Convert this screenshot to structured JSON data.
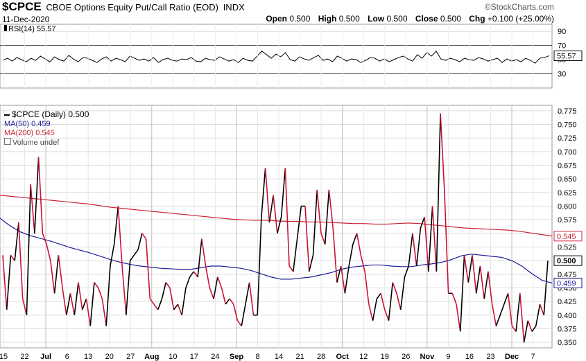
{
  "header": {
    "symbol": "$CPCE",
    "description": "CBOE Options Equity Put/Call Ratio (EOD)",
    "exchange": "INDX",
    "date": "11-Dec-2020",
    "watermark": "©StockCharts.com",
    "open_label": "Open",
    "open": "0.500",
    "high_label": "High",
    "high": "0.500",
    "low_label": "Low",
    "low": "0.500",
    "close_label": "Close",
    "close": "0.500",
    "chg_label": "Chg",
    "chg": "+0.100 (+25.00%)"
  },
  "rsi_panel": {
    "legend": "RSI(14) 55.57",
    "current_label": "55.57",
    "ticks": [
      "90",
      "70",
      "50",
      "30"
    ]
  },
  "price_panel": {
    "legend_price": "$CPCE (Daily) 0.500",
    "legend_ma50": "MA(50) 0.459",
    "legend_ma200": "MA(200) 0.545",
    "legend_volume": "Volume undef",
    "last_close_label": "0.500",
    "ma50_label": "0.459",
    "ma200_label": "0.545",
    "y_ticks": [
      "0.775",
      "0.750",
      "0.725",
      "0.700",
      "0.675",
      "0.650",
      "0.625",
      "0.600",
      "0.575",
      "0.550",
      "0.525",
      "0.500",
      "0.475",
      "0.450",
      "0.425",
      "0.400",
      "0.375",
      "0.350"
    ]
  },
  "x_axis": {
    "labels": [
      "15",
      "22",
      "Jul",
      "6",
      "13",
      "20",
      "27",
      "Aug",
      "10",
      "17",
      "24",
      "Sep",
      "8",
      "14",
      "21",
      "28",
      "Oct",
      "12",
      "19",
      "26",
      "Nov",
      "9",
      "16",
      "23",
      "Dec",
      "7"
    ]
  },
  "colors": {
    "up": "#000000",
    "down": "#cc1133",
    "ma50": "#1a1a99",
    "ma200": "#cc2233",
    "grid": "#dddddd",
    "rsi_line": "#000000"
  },
  "chart_data": [
    {
      "type": "line",
      "title": "RSI(14)",
      "ylim": [
        10,
        100
      ],
      "series": [
        {
          "name": "RSI(14)",
          "values": [
            49,
            52,
            48,
            53,
            50,
            47,
            52,
            49,
            55,
            51,
            47,
            54,
            50,
            48,
            56,
            51,
            47,
            53,
            52,
            49,
            46,
            51,
            54,
            48,
            52,
            50,
            47,
            55,
            52,
            49,
            51,
            48,
            53,
            46,
            50,
            52,
            49,
            48,
            51,
            50,
            53,
            48,
            47,
            52,
            50,
            49,
            54,
            51,
            48,
            50,
            46,
            52,
            49,
            48,
            55,
            62,
            57,
            52,
            58,
            54,
            60,
            50,
            48,
            54,
            51,
            49,
            53,
            56,
            49,
            51,
            47,
            55,
            52,
            48,
            51,
            50,
            46,
            49,
            53,
            52,
            48,
            51,
            47,
            50,
            53,
            55,
            51,
            48,
            57,
            52,
            60,
            55,
            62,
            51,
            49,
            52,
            50,
            47,
            52,
            50,
            49,
            53,
            51,
            48,
            50,
            52,
            46,
            51,
            48,
            50,
            47,
            52,
            49,
            45,
            52,
            53,
            55.57
          ]
        }
      ]
    },
    {
      "type": "line",
      "title": "$CPCE (Daily)",
      "ylim": [
        0.34,
        0.785
      ],
      "series": [
        {
          "name": "$CPCE (Daily)",
          "values": [
            0.51,
            0.41,
            0.51,
            0.5,
            0.57,
            0.43,
            0.4,
            0.64,
            0.55,
            0.69,
            0.55,
            0.53,
            0.5,
            0.44,
            0.51,
            0.45,
            0.4,
            0.44,
            0.4,
            0.46,
            0.41,
            0.43,
            0.38,
            0.46,
            0.45,
            0.43,
            0.38,
            0.49,
            0.53,
            0.6,
            0.49,
            0.4,
            0.5,
            0.51,
            0.52,
            0.55,
            0.54,
            0.43,
            0.42,
            0.41,
            0.43,
            0.46,
            0.45,
            0.41,
            0.42,
            0.4,
            0.45,
            0.47,
            0.48,
            0.47,
            0.54,
            0.49,
            0.45,
            0.43,
            0.47,
            0.45,
            0.42,
            0.43,
            0.42,
            0.39,
            0.38,
            0.42,
            0.46,
            0.4,
            0.4,
            0.58,
            0.67,
            0.57,
            0.62,
            0.55,
            0.58,
            0.67,
            0.49,
            0.48,
            0.54,
            0.6,
            0.6,
            0.48,
            0.51,
            0.63,
            0.55,
            0.53,
            0.63,
            0.56,
            0.46,
            0.49,
            0.44,
            0.49,
            0.53,
            0.55,
            0.51,
            0.48,
            0.42,
            0.39,
            0.43,
            0.44,
            0.41,
            0.39,
            0.46,
            0.44,
            0.41,
            0.47,
            0.49,
            0.55,
            0.49,
            0.56,
            0.58,
            0.48,
            0.6,
            0.48,
            0.77,
            0.63,
            0.44,
            0.44,
            0.42,
            0.37,
            0.51,
            0.46,
            0.51,
            0.44,
            0.49,
            0.43,
            0.48,
            0.42,
            0.38,
            0.4,
            0.42,
            0.44,
            0.38,
            0.37,
            0.44,
            0.35,
            0.39,
            0.37,
            0.38,
            0.42,
            0.4,
            0.5
          ]
        },
        {
          "name": "MA(50)",
          "values": [
            0.578,
            0.564,
            0.553,
            0.546,
            0.541,
            0.536,
            0.53,
            0.524,
            0.519,
            0.514,
            0.508,
            0.502,
            0.497,
            0.493,
            0.49,
            0.488,
            0.486,
            0.485,
            0.484,
            0.484,
            0.487,
            0.49,
            0.49,
            0.488,
            0.486,
            0.482,
            0.476,
            0.47,
            0.466,
            0.466,
            0.468,
            0.47,
            0.474,
            0.478,
            0.484,
            0.488,
            0.49,
            0.492,
            0.492,
            0.49,
            0.489,
            0.489,
            0.492,
            0.494,
            0.497,
            0.502,
            0.509,
            0.512,
            0.51,
            0.508,
            0.506,
            0.5,
            0.49,
            0.476,
            0.464,
            0.459
          ]
        },
        {
          "name": "MA(200)",
          "values": [
            0.62,
            0.618,
            0.616,
            0.614,
            0.612,
            0.61,
            0.608,
            0.606,
            0.604,
            0.601,
            0.598,
            0.596,
            0.594,
            0.592,
            0.59,
            0.588,
            0.586,
            0.584,
            0.582,
            0.58,
            0.578,
            0.576,
            0.575,
            0.574,
            0.574,
            0.573,
            0.572,
            0.572,
            0.571,
            0.571,
            0.57,
            0.569,
            0.568,
            0.568,
            0.567,
            0.567,
            0.568,
            0.569,
            0.568,
            0.566,
            0.564,
            0.562,
            0.56,
            0.559,
            0.558,
            0.557,
            0.556,
            0.554,
            0.551,
            0.548,
            0.545
          ]
        }
      ],
      "legend": "top-left"
    }
  ]
}
